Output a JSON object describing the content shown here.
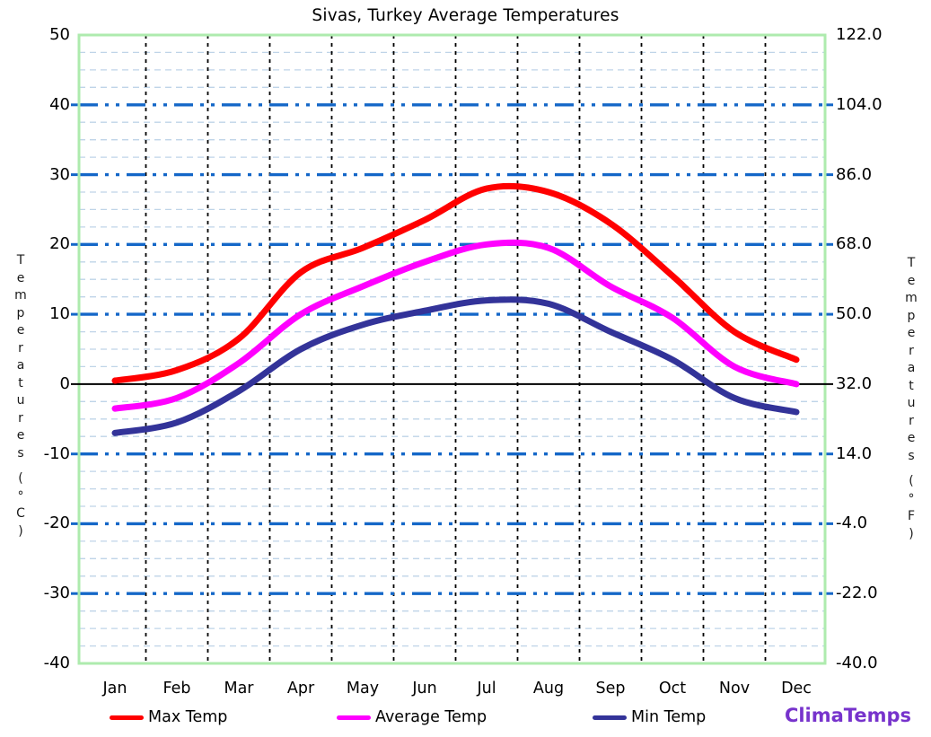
{
  "chart_data": {
    "type": "line",
    "title": "Sivas, Turkey Average Temperatures",
    "categories": [
      "Jan",
      "Feb",
      "Mar",
      "Apr",
      "May",
      "Jun",
      "Jul",
      "Aug",
      "Sep",
      "Oct",
      "Nov",
      "Dec"
    ],
    "series": [
      {
        "name": "Max Temp",
        "color": "#ff0000",
        "values": [
          0.5,
          2,
          6.5,
          16,
          19.5,
          23.5,
          28,
          27.5,
          23,
          15.5,
          7.5,
          3.5
        ]
      },
      {
        "name": "Average Temp",
        "color": "#ff00ff",
        "values": [
          -3.5,
          -2,
          3,
          10,
          14,
          17.5,
          20,
          19.5,
          14,
          9.5,
          2.5,
          0
        ]
      },
      {
        "name": "Min Temp",
        "color": "#333399",
        "values": [
          -7,
          -5.5,
          -1,
          5,
          8.5,
          10.5,
          12,
          11.5,
          7.5,
          3.5,
          -2,
          -4
        ]
      }
    ],
    "y_axis_left": {
      "label": "Temperatures (°C)",
      "range": [
        -40,
        50
      ],
      "ticks": [
        50,
        40,
        30,
        20,
        10,
        0,
        -10,
        -20,
        -30,
        -40
      ]
    },
    "y_axis_right": {
      "label": "Temperatures (°F)",
      "range": [
        -40,
        122
      ],
      "ticks": [
        122.0,
        104.0,
        86.0,
        68.0,
        50.0,
        32.0,
        14.0,
        -4.0,
        -22.0,
        -40.0
      ]
    },
    "grid": {
      "horizontal_major_step_c": 10,
      "horizontal_minor_step_c": 2.5,
      "vertical_lines": "between-month boundaries",
      "legend_position": "bottom"
    }
  },
  "legend": {
    "items": [
      "Max Temp",
      "Average Temp",
      "Min Temp"
    ]
  },
  "branding": {
    "label": "ClimaTemps",
    "color": "#7733cc"
  },
  "colors": {
    "major_grid": "#1467c8",
    "minor_grid": "#bfd4e8",
    "month_grid": "#000000",
    "zero_line": "#000000",
    "plot_border": "#aeebae",
    "text": "#000000"
  }
}
